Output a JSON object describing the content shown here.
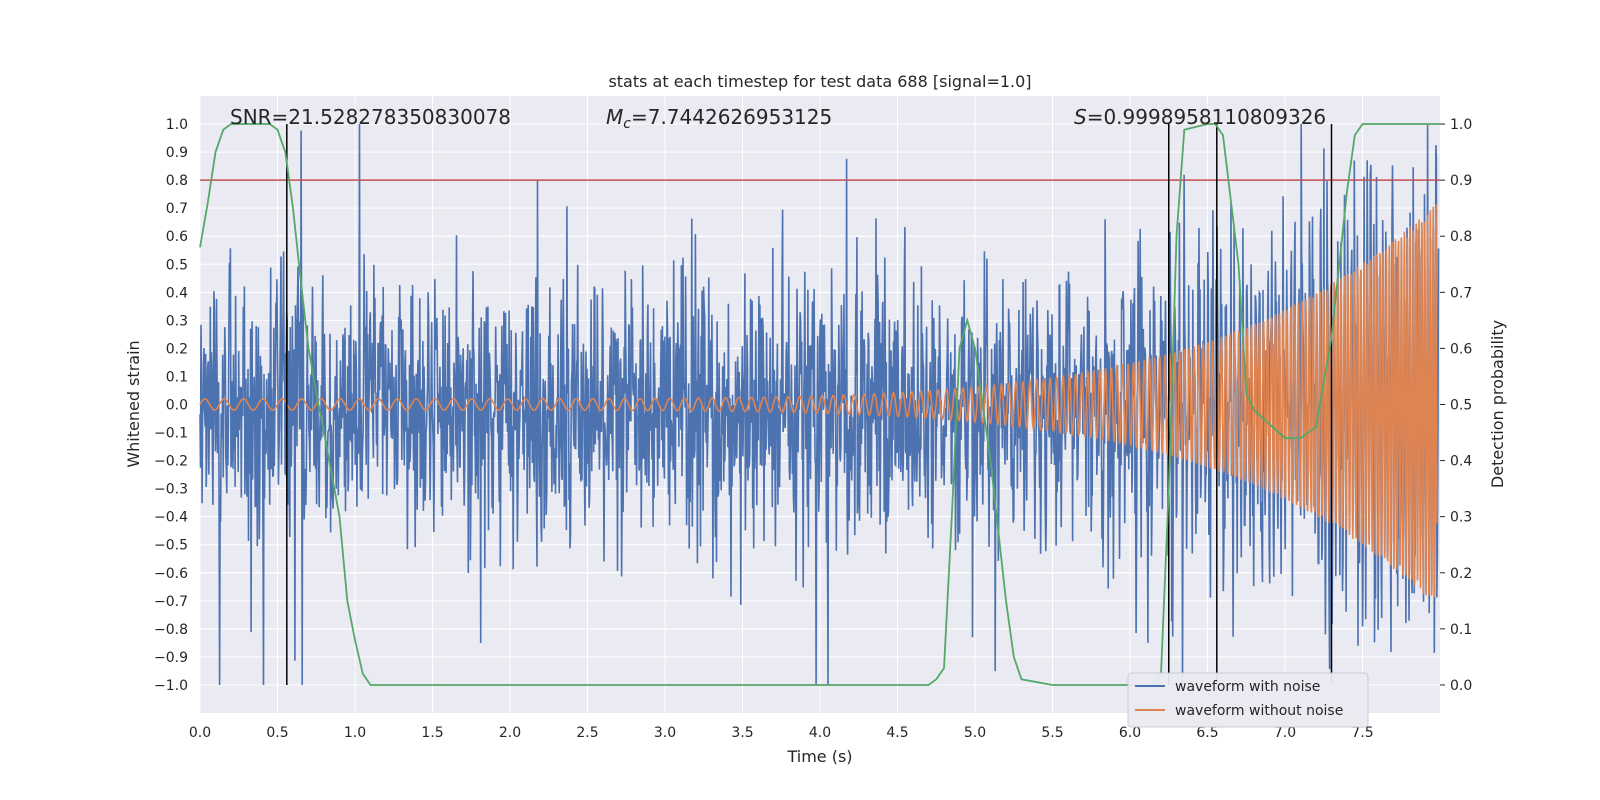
{
  "chart_data": {
    "type": "line",
    "title": "stats at each timestep for test data 688 [signal=1.0]",
    "xlabel": "Time (s)",
    "ylabel": "Whitened strain",
    "y2label": "Detection probability",
    "xlim": [
      0.0,
      8.0
    ],
    "ylim": [
      -1.1,
      1.1
    ],
    "y2lim": [
      -0.05,
      1.05
    ],
    "xticks": [
      "0.0",
      "0.5",
      "1.0",
      "1.5",
      "2.0",
      "2.5",
      "3.0",
      "3.5",
      "4.0",
      "4.5",
      "5.0",
      "5.5",
      "6.0",
      "6.5",
      "7.0",
      "7.5"
    ],
    "yticks": [
      "1.0",
      "0.9",
      "0.8",
      "0.7",
      "0.6",
      "0.5",
      "0.4",
      "0.3",
      "0.2",
      "0.1",
      "0.0",
      "−0.1",
      "−0.2",
      "−0.3",
      "−0.4",
      "−0.5",
      "−0.6",
      "−0.7",
      "−0.8",
      "−0.9",
      "−1.0"
    ],
    "y2ticks": [
      "1.0",
      "0.9",
      "0.8",
      "0.7",
      "0.6",
      "0.5",
      "0.4",
      "0.3",
      "0.2",
      "0.1",
      "0.0"
    ],
    "grid": true,
    "legend": "bottom-right",
    "annotations": {
      "snr": "SNR=21.528278350830078",
      "mc_symbol": "M",
      "mc_sub": "c",
      "mc_value": "=7.7442626953125",
      "s_symbol": "S",
      "s_value": "=0.9998958110809326"
    },
    "series": [
      {
        "name": "waveform with noise",
        "color": "#4c72b0",
        "amplitude": 0.9
      },
      {
        "name": "waveform without noise",
        "color": "#dd8452",
        "amplitude_start": 0.02,
        "amplitude_end": 0.72,
        "t_end": 7.98
      },
      {
        "color": "#55a868",
        "x": [
          0.0,
          0.05,
          0.1,
          0.15,
          0.2,
          0.3,
          0.4,
          0.45,
          0.5,
          0.55,
          0.6,
          0.65,
          0.7,
          0.75,
          0.8,
          0.9,
          0.95,
          1.0,
          1.05,
          1.1,
          1.5,
          2.0,
          3.0,
          4.0,
          4.5,
          4.7,
          4.75,
          4.8,
          4.85,
          4.9,
          4.95,
          5.0,
          5.1,
          5.2,
          5.25,
          5.3,
          5.5,
          6.0,
          6.15,
          6.2,
          6.25,
          6.3,
          6.35,
          6.5,
          6.55,
          6.6,
          6.7,
          6.75,
          6.8,
          7.0,
          7.1,
          7.2,
          7.3,
          7.4,
          7.45,
          7.5,
          7.6,
          8.0
        ],
        "y": [
          0.78,
          0.86,
          0.95,
          0.99,
          1.0,
          1.0,
          1.0,
          1.0,
          0.99,
          0.95,
          0.85,
          0.72,
          0.6,
          0.52,
          0.45,
          0.3,
          0.15,
          0.08,
          0.02,
          0.0,
          0.0,
          0.0,
          0.0,
          0.0,
          0.0,
          0.0,
          0.01,
          0.03,
          0.3,
          0.6,
          0.65,
          0.6,
          0.4,
          0.15,
          0.05,
          0.01,
          0.0,
          0.0,
          0.0,
          0.02,
          0.35,
          0.8,
          0.99,
          1.0,
          1.0,
          0.98,
          0.75,
          0.52,
          0.49,
          0.44,
          0.44,
          0.46,
          0.62,
          0.88,
          0.98,
          1.0,
          1.0,
          1.0
        ]
      },
      {
        "color": "#c44e52",
        "y2": 0.9
      }
    ],
    "vlines": [
      0.56,
      6.25,
      6.56,
      7.3
    ],
    "legend_entries": [
      "waveform with noise",
      "waveform without noise"
    ]
  }
}
